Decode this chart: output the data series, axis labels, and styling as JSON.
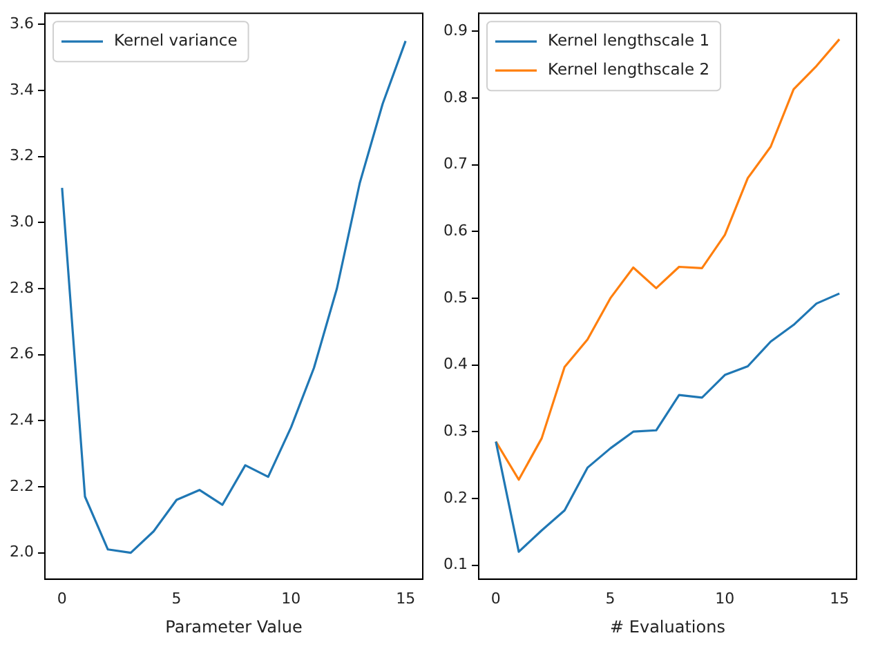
{
  "chart_data": [
    {
      "type": "line",
      "xlabel": "Parameter Value",
      "x": [
        0,
        1,
        2,
        3,
        4,
        5,
        6,
        7,
        8,
        9,
        10,
        11,
        12,
        13,
        14,
        15
      ],
      "series": [
        {
          "name": "Kernel variance",
          "color": "#1f77b4",
          "values": [
            3.105,
            2.17,
            2.01,
            2.0,
            2.065,
            2.16,
            2.19,
            2.145,
            2.265,
            2.23,
            2.38,
            2.56,
            2.8,
            3.12,
            3.36,
            3.55
          ]
        }
      ],
      "xlim": [
        -0.75,
        15.75
      ],
      "xticks": [
        0,
        5,
        10,
        15
      ],
      "ylim": [
        1.92,
        3.634
      ],
      "yticks": [
        {
          "value": 2.0,
          "label": "2.0"
        },
        2.2,
        2.4,
        2.6,
        2.8,
        {
          "value": 3.0,
          "label": "3.0"
        },
        3.2,
        3.4,
        3.6
      ],
      "grid": false,
      "legend": "top left",
      "marker": "none",
      "line_style": "solid"
    },
    {
      "type": "line",
      "xlabel": "# Evaluations",
      "x": [
        0,
        1,
        2,
        3,
        4,
        5,
        6,
        7,
        8,
        9,
        10,
        11,
        12,
        13,
        14,
        15
      ],
      "series": [
        {
          "name": "Kernel lengthscale 1",
          "color": "#1f77b4",
          "values": [
            0.285,
            0.12,
            0.152,
            0.182,
            0.246,
            0.275,
            0.3,
            0.302,
            0.355,
            0.351,
            0.385,
            0.398,
            0.435,
            0.46,
            0.492,
            0.507
          ]
        },
        {
          "name": "Kernel lengthscale 2",
          "color": "#ff7f0e",
          "values": [
            0.285,
            0.228,
            0.29,
            0.397,
            0.438,
            0.5,
            0.546,
            0.515,
            0.547,
            0.545,
            0.595,
            0.68,
            0.727,
            0.813,
            0.848,
            0.888
          ]
        }
      ],
      "xlim": [
        -0.75,
        15.75
      ],
      "xticks": [
        0,
        5,
        10,
        15
      ],
      "ylim": [
        0.079,
        0.927
      ],
      "yticks": [
        0.1,
        0.2,
        0.3,
        0.4,
        0.5,
        0.6,
        0.7,
        0.8,
        0.9
      ],
      "grid": false,
      "legend": "top left",
      "marker": "none",
      "line_style": "solid"
    }
  ]
}
